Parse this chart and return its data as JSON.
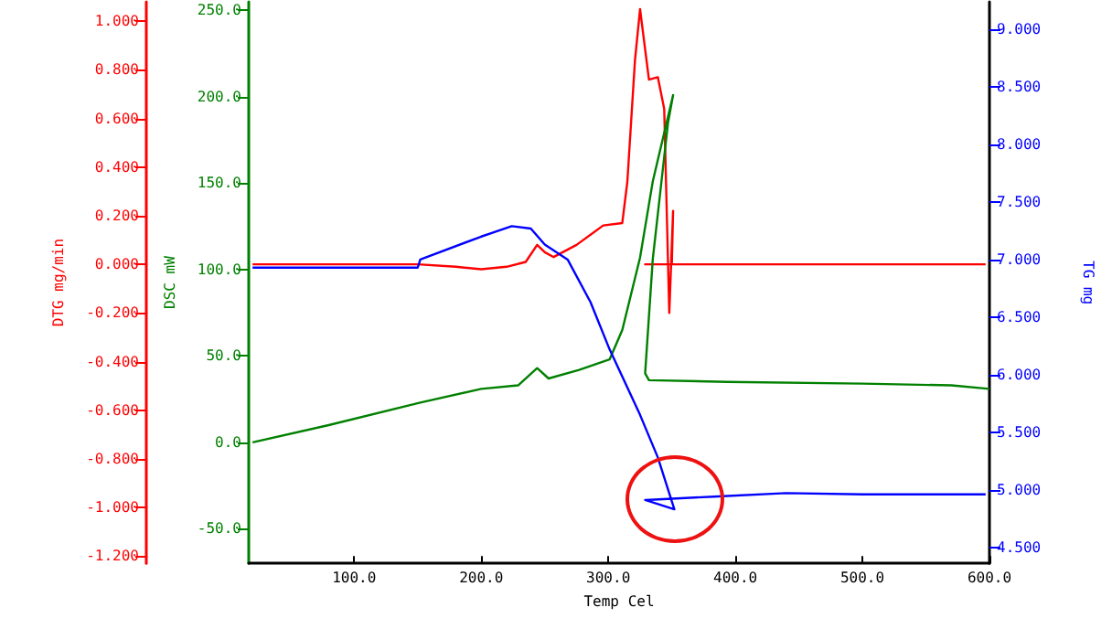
{
  "chart_data": {
    "type": "line",
    "xlabel": "Temp Cel",
    "ylabel": "DTG mg/min",
    "y2label": "DSC mW",
    "y3label": "TG mg",
    "xlim": [
      17,
      600
    ],
    "xticks": [
      {
        "value": 100,
        "label": "100.0"
      },
      {
        "value": 200,
        "label": "200.0"
      },
      {
        "value": 300,
        "label": "300.0"
      },
      {
        "value": 400,
        "label": "400.0"
      },
      {
        "value": 500,
        "label": "500.0"
      },
      {
        "value": 600,
        "label": "600.0"
      }
    ],
    "ylim": [
      -1.23,
      1.08
    ],
    "yticks": [
      {
        "value": -1.2,
        "label": "-1.200"
      },
      {
        "value": -1,
        "label": "-1.000"
      },
      {
        "value": -0.8,
        "label": "-0.800"
      },
      {
        "value": -0.6,
        "label": "-0.600"
      },
      {
        "value": -0.4,
        "label": "-0.400"
      },
      {
        "value": -0.2,
        "label": "-0.200"
      },
      {
        "value": 0,
        "label": "0.000"
      },
      {
        "value": 0.2,
        "label": "0.200"
      },
      {
        "value": 0.4,
        "label": "0.400"
      },
      {
        "value": 0.6,
        "label": "0.600"
      },
      {
        "value": 0.8,
        "label": "0.800"
      },
      {
        "value": 1,
        "label": "1.000"
      }
    ],
    "y2lim": [
      -70,
      255
    ],
    "y2ticks": [
      {
        "value": -50,
        "label": "-50.0"
      },
      {
        "value": 0,
        "label": "0.0"
      },
      {
        "value": 50,
        "label": "50.0"
      },
      {
        "value": 100,
        "label": "100.0"
      },
      {
        "value": 150,
        "label": "150.0"
      },
      {
        "value": 200,
        "label": "200.0"
      },
      {
        "value": 250,
        "label": "250.0"
      }
    ],
    "y3lim": [
      4.36,
      9.24
    ],
    "y3ticks": [
      {
        "value": 4.5,
        "label": "4.500"
      },
      {
        "value": 5,
        "label": "5.000"
      },
      {
        "value": 5.5,
        "label": "5.500"
      },
      {
        "value": 6,
        "label": "6.000"
      },
      {
        "value": 6.5,
        "label": "6.500"
      },
      {
        "value": 7,
        "label": "7.000"
      },
      {
        "value": 7.5,
        "label": "7.500"
      },
      {
        "value": 8,
        "label": "8.000"
      },
      {
        "value": 8.5,
        "label": "8.500"
      },
      {
        "value": 9,
        "label": "9.000"
      }
    ],
    "grid": false,
    "marker": "none",
    "line_style": "solid",
    "series": [
      {
        "color": "#ff0000",
        "axis": "y",
        "x": [
          20,
          100,
          150,
          180,
          200,
          220,
          235,
          244,
          250,
          257,
          275,
          296,
          311,
          315,
          321,
          325,
          332,
          339,
          344,
          348,
          351,
          350,
          329,
          400,
          500,
          597
        ],
        "values": [
          0,
          0,
          0,
          -0.01,
          -0.02,
          -0.01,
          0.01,
          0.08,
          0.05,
          0.03,
          0.08,
          0.16,
          0.17,
          0.34,
          0.84,
          1.05,
          0.76,
          0.77,
          0.64,
          -0.2,
          0.22,
          0,
          0,
          0,
          0,
          0
        ]
      },
      {
        "color": "#008000",
        "axis": "y2",
        "x": [
          20,
          80,
          152,
          200,
          229,
          244,
          253,
          277,
          301,
          311,
          325,
          335,
          351,
          347,
          335,
          329,
          332,
          394,
          500,
          570,
          600
        ],
        "values": [
          0,
          10,
          23,
          31,
          33,
          43,
          37,
          42,
          48,
          65,
          107,
          151,
          201,
          185,
          106,
          40,
          36,
          35,
          34,
          33,
          31
        ]
      },
      {
        "color": "#0000ff",
        "axis": "y3",
        "x": [
          20,
          100,
          150,
          152,
          200,
          224,
          239,
          250,
          268,
          286,
          301,
          325,
          339,
          352,
          329,
          383,
          440,
          500,
          597
        ],
        "values": [
          6.93,
          6.93,
          6.93,
          7.0,
          7.2,
          7.29,
          7.27,
          7.13,
          7.0,
          6.63,
          6.22,
          5.65,
          5.28,
          4.83,
          4.91,
          4.94,
          4.97,
          4.96,
          4.96
        ]
      }
    ]
  }
}
